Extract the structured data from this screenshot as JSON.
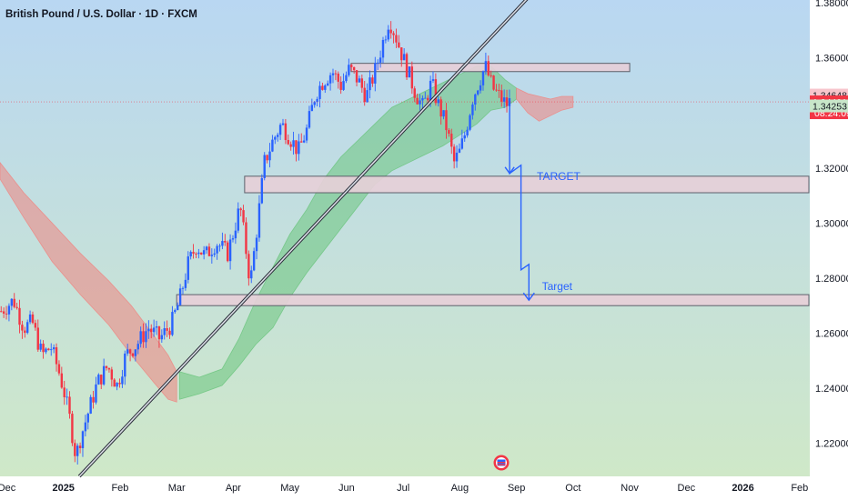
{
  "chart_data": {
    "type": "candlestick",
    "title": "British Pound / U.S. Dollar · 1D · FXCM",
    "y_range": [
      1.208,
      1.381
    ],
    "y_ticks": [
      {
        "value": 1.38,
        "label": "1.38000"
      },
      {
        "value": 1.36,
        "label": "1.36000"
      },
      {
        "value": 1.32,
        "label": "1.32000"
      },
      {
        "value": 1.3,
        "label": "1.30000"
      },
      {
        "value": 1.28,
        "label": "1.28000"
      },
      {
        "value": 1.26,
        "label": "1.26000"
      },
      {
        "value": 1.24,
        "label": "1.24000"
      },
      {
        "value": 1.22,
        "label": "1.22000"
      }
    ],
    "x_range_months": [
      -0.12,
      14.18
    ],
    "x_ticks": [
      {
        "month": 0,
        "label": "Dec",
        "bold": false
      },
      {
        "month": 1,
        "label": "2025",
        "bold": true
      },
      {
        "month": 2,
        "label": "Feb",
        "bold": false
      },
      {
        "month": 3,
        "label": "Mar",
        "bold": false
      },
      {
        "month": 4,
        "label": "Apr",
        "bold": false
      },
      {
        "month": 5,
        "label": "May",
        "bold": false
      },
      {
        "month": 6,
        "label": "Jun",
        "bold": false
      },
      {
        "month": 7,
        "label": "Jul",
        "bold": false
      },
      {
        "month": 8,
        "label": "Aug",
        "bold": false
      },
      {
        "month": 9,
        "label": "Sep",
        "bold": false
      },
      {
        "month": 10,
        "label": "Oct",
        "bold": false
      },
      {
        "month": 11,
        "label": "Nov",
        "bold": false
      },
      {
        "month": 12,
        "label": "Dec",
        "bold": false
      },
      {
        "month": 13,
        "label": "2026",
        "bold": true
      },
      {
        "month": 14,
        "label": "Feb",
        "bold": false
      }
    ],
    "close_path": [
      [
        -0.1,
        1.268
      ],
      [
        0.12,
        1.272
      ],
      [
        0.3,
        1.262
      ],
      [
        0.45,
        1.264
      ],
      [
        0.62,
        1.252
      ],
      [
        0.78,
        1.255
      ],
      [
        0.92,
        1.246
      ],
      [
        1.02,
        1.238
      ],
      [
        1.12,
        1.228
      ],
      [
        1.22,
        1.215
      ],
      [
        1.3,
        1.222
      ],
      [
        1.45,
        1.232
      ],
      [
        1.6,
        1.242
      ],
      [
        1.78,
        1.248
      ],
      [
        1.95,
        1.241
      ],
      [
        2.1,
        1.252
      ],
      [
        2.3,
        1.256
      ],
      [
        2.5,
        1.262
      ],
      [
        2.7,
        1.258
      ],
      [
        2.9,
        1.263
      ],
      [
        3.05,
        1.272
      ],
      [
        3.2,
        1.285
      ],
      [
        3.35,
        1.292
      ],
      [
        3.5,
        1.288
      ],
      [
        3.7,
        1.293
      ],
      [
        3.9,
        1.289
      ],
      [
        4.02,
        1.298
      ],
      [
        4.12,
        1.306
      ],
      [
        4.2,
        1.294
      ],
      [
        4.3,
        1.278
      ],
      [
        4.4,
        1.295
      ],
      [
        4.55,
        1.322
      ],
      [
        4.7,
        1.33
      ],
      [
        4.85,
        1.336
      ],
      [
        5.0,
        1.331
      ],
      [
        5.15,
        1.326
      ],
      [
        5.3,
        1.334
      ],
      [
        5.45,
        1.347
      ],
      [
        5.6,
        1.352
      ],
      [
        5.75,
        1.355
      ],
      [
        5.9,
        1.35
      ],
      [
        6.05,
        1.356
      ],
      [
        6.2,
        1.352
      ],
      [
        6.35,
        1.346
      ],
      [
        6.5,
        1.355
      ],
      [
        6.62,
        1.364
      ],
      [
        6.75,
        1.374
      ],
      [
        6.85,
        1.369
      ],
      [
        6.98,
        1.361
      ],
      [
        7.1,
        1.354
      ],
      [
        7.22,
        1.347
      ],
      [
        7.35,
        1.342
      ],
      [
        7.5,
        1.351
      ],
      [
        7.6,
        1.344
      ],
      [
        7.75,
        1.336
      ],
      [
        7.9,
        1.322
      ],
      [
        8.0,
        1.326
      ],
      [
        8.1,
        1.333
      ],
      [
        8.22,
        1.345
      ],
      [
        8.35,
        1.352
      ],
      [
        8.45,
        1.357
      ],
      [
        8.58,
        1.349
      ],
      [
        8.7,
        1.346
      ],
      [
        8.82,
        1.343
      ],
      [
        8.88,
        1.344
      ]
    ],
    "ichimoku_cloud": [
      {
        "bullish": false,
        "points": [
          [
            -0.12,
            1.322,
            1.316
          ],
          [
            0.3,
            1.311,
            1.302
          ],
          [
            0.8,
            1.3,
            1.286
          ],
          [
            1.3,
            1.289,
            1.274
          ],
          [
            1.8,
            1.279,
            1.263
          ],
          [
            2.2,
            1.27,
            1.252
          ],
          [
            2.6,
            1.259,
            1.242
          ],
          [
            2.85,
            1.252,
            1.236
          ],
          [
            3.0,
            1.246,
            1.235
          ]
        ]
      },
      {
        "bullish": true,
        "points": [
          [
            3.05,
            1.246,
            1.236
          ],
          [
            3.4,
            1.244,
            1.238
          ],
          [
            3.8,
            1.247,
            1.241
          ],
          [
            4.1,
            1.258,
            1.248
          ],
          [
            4.4,
            1.272,
            1.256
          ],
          [
            4.7,
            1.284,
            1.262
          ],
          [
            5.0,
            1.296,
            1.273
          ],
          [
            5.3,
            1.305,
            1.282
          ],
          [
            5.6,
            1.316,
            1.29
          ],
          [
            5.9,
            1.324,
            1.298
          ],
          [
            6.2,
            1.33,
            1.306
          ],
          [
            6.5,
            1.336,
            1.314
          ],
          [
            6.8,
            1.342,
            1.319
          ],
          [
            7.1,
            1.345,
            1.322
          ],
          [
            7.4,
            1.348,
            1.325
          ],
          [
            7.7,
            1.351,
            1.328
          ],
          [
            8.0,
            1.354,
            1.332
          ],
          [
            8.3,
            1.357,
            1.336
          ],
          [
            8.55,
            1.357,
            1.341
          ],
          [
            8.8,
            1.352,
            1.342
          ],
          [
            9.0,
            1.349,
            1.345
          ]
        ]
      },
      {
        "bullish": false,
        "points": [
          [
            9.0,
            1.349,
            1.345
          ],
          [
            9.2,
            1.347,
            1.34
          ],
          [
            9.4,
            1.346,
            1.337
          ],
          [
            9.6,
            1.345,
            1.339
          ],
          [
            9.8,
            1.346,
            1.341
          ],
          [
            10.0,
            1.346,
            1.342
          ]
        ]
      }
    ],
    "resistance_zone": {
      "from_month": 6.08,
      "to_month": 11.0,
      "top": 1.358,
      "bottom": 1.355
    },
    "support_zones": [
      {
        "from_month": 4.2,
        "to_month": 14.45,
        "top": 1.317,
        "bottom": 1.311,
        "label": "TARGET"
      },
      {
        "from_month": 3.0,
        "to_month": 14.45,
        "top": 1.274,
        "bottom": 1.27,
        "label": "Target"
      }
    ],
    "trendline": [
      [
        1.28,
        1.208
      ],
      [
        9.35,
        1.385
      ]
    ],
    "projection_path": [
      [
        8.88,
        1.345
      ],
      [
        8.88,
        1.318
      ],
      [
        9.08,
        1.321
      ],
      [
        9.08,
        1.283
      ],
      [
        9.22,
        1.285
      ],
      [
        9.22,
        1.272
      ]
    ],
    "last_price": 1.34401,
    "price_tags": [
      {
        "value": 1.34648,
        "label": "1.34648",
        "color": "#f7c5cc"
      },
      {
        "value": 1.34401,
        "label": "1.34401",
        "sub": "08:24:09",
        "color": "#f23645"
      },
      {
        "value": 1.34253,
        "label": "1.34253",
        "color": "#c8e6c9"
      }
    ]
  },
  "colors": {
    "bg_top": "#b9d7f2",
    "bg_bottom": "#cfe8c8",
    "bullish_candle": "#2962ff",
    "bearish_candle": "#f23645",
    "cloud_bullish": "#69c47c",
    "cloud_bearish": "#f0837f",
    "zone_fill": "#e6cfd8",
    "zone_border": "#5d606b",
    "annotation": "#2962ff"
  },
  "icon": "flag-icon"
}
